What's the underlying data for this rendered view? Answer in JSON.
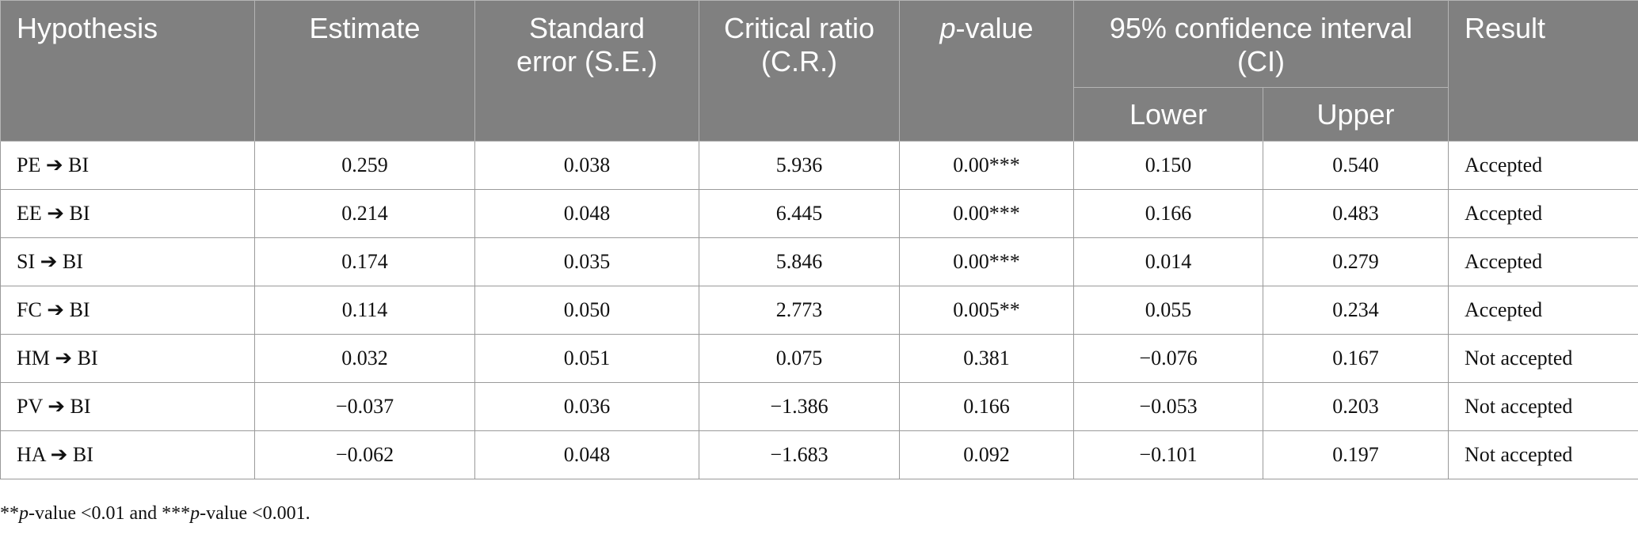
{
  "header": {
    "hypothesis": "Hypothesis",
    "estimate": "Estimate",
    "se": "Standard error (S.E.)",
    "cr": "Critical ratio (C.R.)",
    "p_italic": "p",
    "p_rest": "-value",
    "ci": "95% confidence interval (CI)",
    "lower": "Lower",
    "upper": "Upper",
    "result": "Result"
  },
  "rows": [
    {
      "hyp": "PE ➔ BI",
      "estimate": "0.259",
      "se": "0.038",
      "cr": "5.936",
      "p": "0.00***",
      "lower": "0.150",
      "upper": "0.540",
      "result": "Accepted"
    },
    {
      "hyp": "EE ➔ BI",
      "estimate": "0.214",
      "se": "0.048",
      "cr": "6.445",
      "p": "0.00***",
      "lower": "0.166",
      "upper": "0.483",
      "result": "Accepted"
    },
    {
      "hyp": "SI ➔ BI",
      "estimate": "0.174",
      "se": "0.035",
      "cr": "5.846",
      "p": "0.00***",
      "lower": "0.014",
      "upper": "0.279",
      "result": "Accepted"
    },
    {
      "hyp": "FC ➔ BI",
      "estimate": "0.114",
      "se": "0.050",
      "cr": "2.773",
      "p": "0.005**",
      "lower": "0.055",
      "upper": "0.234",
      "result": "Accepted"
    },
    {
      "hyp": "HM ➔ BI",
      "estimate": "0.032",
      "se": "0.051",
      "cr": "0.075",
      "p": "0.381",
      "lower": "−0.076",
      "upper": "0.167",
      "result": "Not accepted"
    },
    {
      "hyp": "PV ➔ BI",
      "estimate": "−0.037",
      "se": "0.036",
      "cr": "−1.386",
      "p": "0.166",
      "lower": "−0.053",
      "upper": "0.203",
      "result": "Not accepted"
    },
    {
      "hyp": "HA ➔ BI",
      "estimate": "−0.062",
      "se": "0.048",
      "cr": "−1.683",
      "p": "0.092",
      "lower": "−0.101",
      "upper": "0.197",
      "result": "Not accepted"
    }
  ],
  "footnote": {
    "a1": "**",
    "p1": "p",
    "a2": "-value <0.01 and ***",
    "p2": "p",
    "a3": "-value <0.001."
  }
}
